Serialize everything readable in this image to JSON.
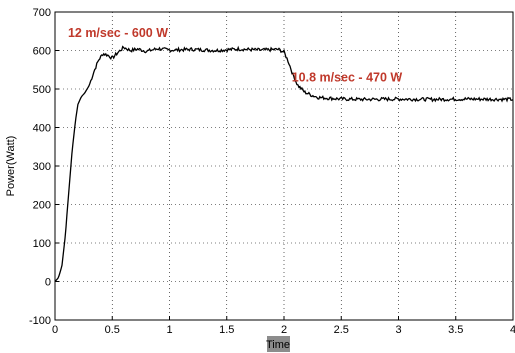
{
  "chart_data": {
    "type": "line",
    "title": "",
    "xlabel": "Time",
    "ylabel": "Power(Watt)",
    "xlim": [
      0,
      4
    ],
    "ylim": [
      -100,
      700
    ],
    "x_ticks": [
      "0",
      "0.5",
      "1",
      "1.5",
      "2",
      "2.5",
      "3",
      "3.5",
      "4"
    ],
    "y_ticks": [
      "-100",
      "0",
      "100",
      "200",
      "300",
      "400",
      "500",
      "600",
      "700"
    ],
    "grid": true,
    "series": [
      {
        "color": "#000000",
        "points": [
          [
            0.0,
            0
          ],
          [
            0.03,
            10
          ],
          [
            0.06,
            40
          ],
          [
            0.09,
            120
          ],
          [
            0.12,
            230
          ],
          [
            0.15,
            340
          ],
          [
            0.18,
            420
          ],
          [
            0.2,
            460
          ],
          [
            0.23,
            480
          ],
          [
            0.26,
            490
          ],
          [
            0.3,
            510
          ],
          [
            0.34,
            545
          ],
          [
            0.38,
            575
          ],
          [
            0.42,
            592
          ],
          [
            0.46,
            588
          ],
          [
            0.5,
            580
          ],
          [
            0.55,
            595
          ],
          [
            0.6,
            608
          ],
          [
            0.66,
            600
          ],
          [
            0.72,
            604
          ],
          [
            0.8,
            598
          ],
          [
            0.9,
            605
          ],
          [
            1.0,
            601
          ],
          [
            1.2,
            603
          ],
          [
            1.4,
            600
          ],
          [
            1.6,
            604
          ],
          [
            1.8,
            601
          ],
          [
            1.95,
            603
          ],
          [
            2.0,
            596
          ],
          [
            2.04,
            570
          ],
          [
            2.08,
            535
          ],
          [
            2.12,
            510
          ],
          [
            2.18,
            492
          ],
          [
            2.24,
            484
          ],
          [
            2.3,
            478
          ],
          [
            2.4,
            476
          ],
          [
            2.5,
            474
          ],
          [
            2.7,
            473
          ],
          [
            3.0,
            474
          ],
          [
            3.3,
            473
          ],
          [
            3.6,
            474
          ],
          [
            4.0,
            473
          ]
        ]
      }
    ],
    "annotations": [
      {
        "text": "12 m/sec - 600 W",
        "x": 0.55,
        "y": 635,
        "color": "#c0392b"
      },
      {
        "text": "10.8 m/sec - 470 W",
        "x": 2.55,
        "y": 520,
        "color": "#c0392b"
      }
    ]
  }
}
